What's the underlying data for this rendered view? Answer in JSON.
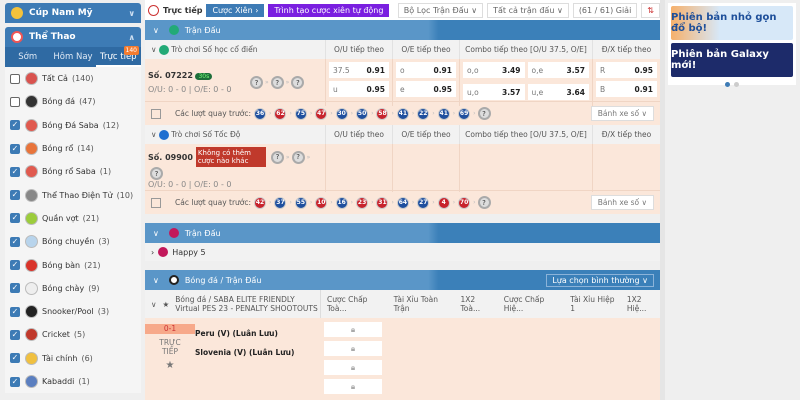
{
  "sidebar": {
    "cup": "Cúp Nam Mỹ",
    "sports": "Thể Thao",
    "tabs": [
      "Sớm",
      "Hôm Nay",
      "Trực tiếp"
    ],
    "live_badge": "140",
    "items": [
      {
        "label": "Tất Cả",
        "count": "(140)",
        "checked": false,
        "color": "#d9534f"
      },
      {
        "label": "Bóng đá",
        "count": "(47)",
        "checked": false,
        "color": "#333333"
      },
      {
        "label": "Bóng Đá Saba",
        "count": "(12)",
        "checked": true,
        "color": "#e05a4f"
      },
      {
        "label": "Bóng rổ",
        "count": "(14)",
        "checked": true,
        "color": "#e8743b"
      },
      {
        "label": "Bóng rổ Saba",
        "count": "(1)",
        "checked": true,
        "color": "#e05a4f"
      },
      {
        "label": "Thể Thao Điện Tử",
        "count": "(10)",
        "checked": true,
        "color": "#888888"
      },
      {
        "label": "Quần vợt",
        "count": "(21)",
        "checked": true,
        "color": "#9ccc3c"
      },
      {
        "label": "Bóng chuyền",
        "count": "(3)",
        "checked": true,
        "color": "#b8d4ec"
      },
      {
        "label": "Bóng bàn",
        "count": "(21)",
        "checked": true,
        "color": "#d9342b"
      },
      {
        "label": "Bóng chày",
        "count": "(9)",
        "checked": true,
        "color": "#eeeeee"
      },
      {
        "label": "Snooker/Pool",
        "count": "(3)",
        "checked": true,
        "color": "#222222"
      },
      {
        "label": "Cricket",
        "count": "(5)",
        "checked": true,
        "color": "#c0392b"
      },
      {
        "label": "Tài chính",
        "count": "(6)",
        "checked": true,
        "color": "#f0c040"
      },
      {
        "label": "Kabaddi",
        "count": "(1)",
        "checked": true,
        "color": "#5b7fc0"
      }
    ]
  },
  "toolbar": {
    "live": "Trực tiếp",
    "parlay": "Cược Xiên",
    "builder": "Trình tạo cược xiên tự động",
    "filter": "Bộ Lọc Trận Đấu",
    "all": "Tất cả trận đấu",
    "leagues": "(61 / 61) Giải"
  },
  "colors": {
    "primary": "#3d7bb5",
    "builder": "#7a1fe0",
    "row": "#fbe7da",
    "red_ball": "#c8232c",
    "blue_ball": "#1f4f9e"
  },
  "section1": {
    "title": "Trận Đấu",
    "game1": {
      "name": "Trò chơi Số học cổ điển",
      "cols": [
        "O/U tiếp theo",
        "O/E tiếp theo",
        "Combo tiếp theo [O/U 37.5, O/E]",
        "Đ/X tiếp theo"
      ],
      "draw": "Số. 07222",
      "timer": "30s",
      "score": "O/U: 0 - 0 | O/E: 0 - 0",
      "ou": [
        [
          "37.5",
          "0.91"
        ],
        [
          "u",
          "0.95"
        ]
      ],
      "oe": [
        [
          "o",
          "0.91"
        ],
        [
          "e",
          "0.95"
        ]
      ],
      "combo": [
        [
          "o,o",
          "3.49"
        ],
        [
          "o,e",
          "3.57"
        ],
        [
          "u,o",
          "3.57"
        ],
        [
          "u,e",
          "3.64"
        ]
      ],
      "rb": [
        [
          "R",
          "0.95"
        ],
        [
          "B",
          "0.91"
        ]
      ],
      "recent_label": "Các lượt quay trước:",
      "balls": [
        [
          "36",
          "blue"
        ],
        [
          "62",
          "red"
        ],
        [
          "75",
          "blue"
        ],
        [
          "47",
          "red"
        ],
        [
          "30",
          "blue"
        ],
        [
          "50",
          "blue"
        ],
        [
          "58",
          "red"
        ],
        [
          "41",
          "blue"
        ],
        [
          "22",
          "blue"
        ],
        [
          "41",
          "blue"
        ],
        [
          "69",
          "blue"
        ]
      ],
      "wheel": "Bánh xe số"
    },
    "game2": {
      "name": "Trò chơi Số Tốc Độ",
      "cols": [
        "O/U tiếp theo",
        "O/E tiếp theo",
        "Combo tiếp theo [O/U 37.5, O/E]",
        "Đ/X tiếp theo"
      ],
      "draw": "Số. 09900",
      "closed": "Không có thêm cược nào khác",
      "score": "O/U: 0 - 0 | O/E: 0 - 0",
      "recent_label": "Các lượt quay trước:",
      "balls": [
        [
          "42",
          "red"
        ],
        [
          "37",
          "blue"
        ],
        [
          "55",
          "blue"
        ],
        [
          "10",
          "red"
        ],
        [
          "16",
          "blue"
        ],
        [
          "23",
          "red"
        ],
        [
          "31",
          "red"
        ],
        [
          "64",
          "blue"
        ],
        [
          "27",
          "blue"
        ],
        [
          "4",
          "red"
        ],
        [
          "70",
          "red"
        ]
      ],
      "wheel": "Bánh xe số"
    }
  },
  "section2": {
    "title": "Trận Đấu",
    "item": "Happy 5"
  },
  "section3": {
    "title": "Bóng đá / Trận Đấu",
    "sort": "Lựa chọn bình thường",
    "league": "Bóng đá / SABA ELITE FRIENDLY Virtual PES 23 - PENALTY SHOOTOUTS",
    "cols": [
      "Cược Chấp Toà...",
      "Tài Xỉu Toàn Trận",
      "1X2 Toà...",
      "Cược Chấp Hiệ...",
      "Tài Xỉu Hiệp 1",
      "1X2 Hiệ..."
    ],
    "score": "0-1",
    "status": "TRỰC TIẾP",
    "home": "Peru (V) (Luân Lưu)",
    "away": "Slovenia (V) (Luân Lưu)"
  },
  "banners": [
    "Phiên bản nhỏ gọn đổ bộ!",
    "Phiên bản Galaxy mới!"
  ]
}
